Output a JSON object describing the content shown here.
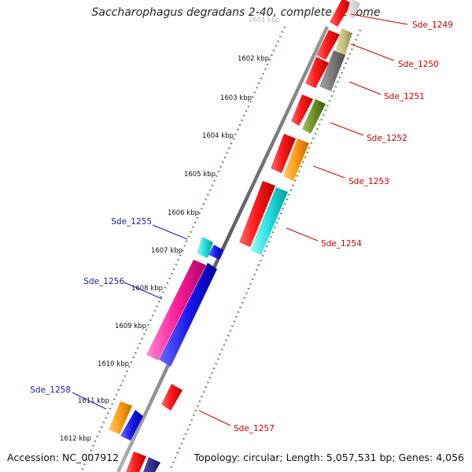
{
  "title": "Saccharophagus degradans 2-40, complete genome",
  "footer": {
    "accession": "Accession: NC_007912",
    "summary": "Topology: circular; Length: 5,057,531 bp; Genes: 4,056"
  },
  "colors": {
    "backbone": "#808080",
    "ruler_dots": "#2e8b2e",
    "label_forward": "#cc0000",
    "label_reverse": "#1a1aaa",
    "tick_text": "#111111"
  },
  "ruler_ticks": [
    {
      "label": "1601 kbp",
      "kbp": 1601,
      "faded": true
    },
    {
      "label": "1602 kbp",
      "kbp": 1602
    },
    {
      "label": "1603 kbp",
      "kbp": 1603
    },
    {
      "label": "1604 kbp",
      "kbp": 1604
    },
    {
      "label": "1605 kbp",
      "kbp": 1605
    },
    {
      "label": "1606 kbp",
      "kbp": 1606
    },
    {
      "label": "1607 kbp",
      "kbp": 1607
    },
    {
      "label": "1608 kbp",
      "kbp": 1608
    },
    {
      "label": "1609 kbp",
      "kbp": 1609
    },
    {
      "label": "1610 kbp",
      "kbp": 1610
    },
    {
      "label": "1611 kbp",
      "kbp": 1611
    },
    {
      "label": "1612 kbp",
      "kbp": 1612
    }
  ],
  "gene_labels": [
    {
      "name": "Sde_1249",
      "strand": "forward"
    },
    {
      "name": "Sde_1250",
      "strand": "forward"
    },
    {
      "name": "Sde_1251",
      "strand": "forward"
    },
    {
      "name": "Sde_1252",
      "strand": "forward"
    },
    {
      "name": "Sde_1253",
      "strand": "forward"
    },
    {
      "name": "Sde_1254",
      "strand": "forward"
    },
    {
      "name": "Sde_1255",
      "strand": "reverse"
    },
    {
      "name": "Sde_1256",
      "strand": "reverse"
    },
    {
      "name": "Sde_1257",
      "strand": "forward"
    },
    {
      "name": "Sde_1258",
      "strand": "reverse"
    }
  ]
}
